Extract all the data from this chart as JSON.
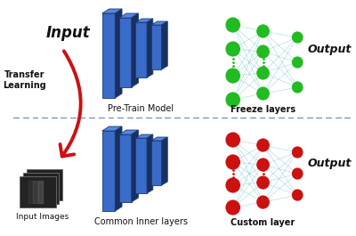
{
  "bg_color": "#ffffff",
  "blue_face": "#3a6bc8",
  "blue_edge": "#1a3a7a",
  "blue_top": "#5588dd",
  "blue_right": "#1a3060",
  "green_face": "#22bb22",
  "red_face": "#cc1111",
  "line_color": "#88ccdd",
  "dashed_line_color": "#7799bb",
  "arrow_color": "#cc1111",
  "text_color": "#111111",
  "label_input": "Input",
  "label_pretrain": "Pre-Train Model",
  "label_freeze": "Freeze layers",
  "label_common": "Common Inner layers",
  "label_custom": "Custom layer",
  "label_output": "Output",
  "label_transfer": "Transfer\nLearning",
  "label_input_images": "Input Images"
}
